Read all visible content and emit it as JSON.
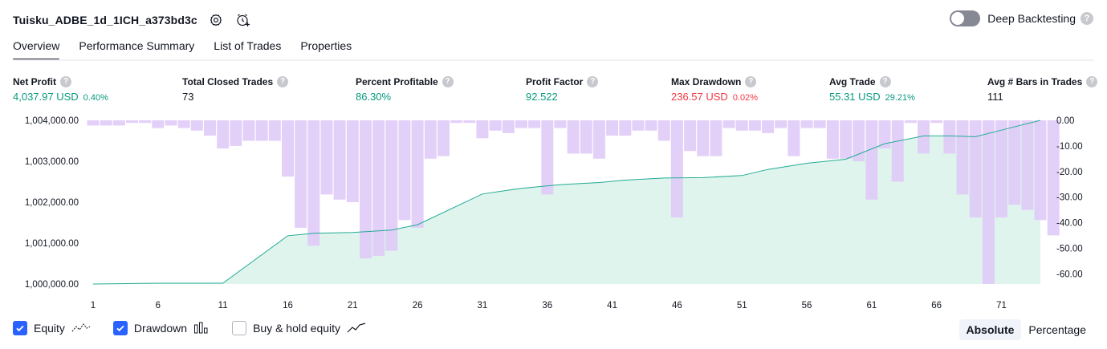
{
  "header": {
    "title": "Tuisku_ADBE_1d_1ICH_a373bd3c",
    "deep_backtesting_label": "Deep Backtesting",
    "help_glyph": "?"
  },
  "tabs": [
    {
      "label": "Overview",
      "active": true
    },
    {
      "label": "Performance Summary",
      "active": false
    },
    {
      "label": "List of Trades",
      "active": false
    },
    {
      "label": "Properties",
      "active": false
    }
  ],
  "metrics": [
    {
      "label": "Net Profit",
      "value": "4,037.97 USD",
      "sub": "0.40%",
      "color": "green"
    },
    {
      "label": "Total Closed Trades",
      "value": "73",
      "sub": "",
      "color": "dark"
    },
    {
      "label": "Percent Profitable",
      "value": "86.30%",
      "sub": "",
      "color": "green"
    },
    {
      "label": "Profit Factor",
      "value": "92.522",
      "sub": "",
      "color": "green"
    },
    {
      "label": "Max Drawdown",
      "value": "236.57 USD",
      "sub": "0.02%",
      "color": "red"
    },
    {
      "label": "Avg Trade",
      "value": "55.31 USD",
      "sub": "29.21%",
      "color": "green"
    },
    {
      "label": "Avg # Bars in Trades",
      "value": "111",
      "sub": "",
      "color": "dark"
    }
  ],
  "legend": {
    "equity_label": "Equity",
    "drawdown_label": "Drawdown",
    "buyhold_label": "Buy & hold equity",
    "equity_checked": true,
    "drawdown_checked": true,
    "buyhold_checked": false
  },
  "segmented": {
    "absolute_label": "Absolute",
    "percentage_label": "Percentage",
    "active": "absolute"
  },
  "colors": {
    "equity_line": "#22ab94",
    "equity_fill": "#e0f4ee",
    "drawdown_bar": "#dec8f8",
    "accent": "#2962ff",
    "green": "#089981",
    "red": "#f23645"
  },
  "chart_data": {
    "type": "area",
    "x_ticks": [
      "1",
      "6",
      "11",
      "16",
      "21",
      "26",
      "31",
      "36",
      "41",
      "46",
      "51",
      "56",
      "61",
      "66",
      "71"
    ],
    "x_range": [
      1,
      74
    ],
    "left_axis": {
      "ticks": [
        "1,004,000.00",
        "1,003,000.00",
        "1,002,000.00",
        "1,001,000.00",
        "1,000,000.00"
      ],
      "range": [
        1000000,
        1004000
      ]
    },
    "right_axis": {
      "ticks": [
        "0.00",
        "-10.00",
        "-20.00",
        "-30.00",
        "-40.00",
        "-50.00",
        "-60.00"
      ],
      "range": [
        -64,
        0
      ]
    },
    "series": [
      {
        "kind": "equity",
        "axis": "left",
        "points": [
          [
            1,
            1000000
          ],
          [
            6,
            1000020
          ],
          [
            11,
            1000020
          ],
          [
            16,
            1001180
          ],
          [
            18,
            1001240
          ],
          [
            21,
            1001260
          ],
          [
            24,
            1001320
          ],
          [
            26,
            1001450
          ],
          [
            31,
            1002200
          ],
          [
            34,
            1002340
          ],
          [
            37,
            1002430
          ],
          [
            40,
            1002480
          ],
          [
            42,
            1002540
          ],
          [
            45,
            1002590
          ],
          [
            48,
            1002600
          ],
          [
            51,
            1002650
          ],
          [
            53,
            1002800
          ],
          [
            56,
            1002950
          ],
          [
            59,
            1003050
          ],
          [
            62,
            1003430
          ],
          [
            65,
            1003620
          ],
          [
            67,
            1003620
          ],
          [
            69,
            1003600
          ],
          [
            71,
            1003760
          ],
          [
            74,
            1004000
          ]
        ]
      },
      {
        "kind": "drawdown",
        "axis": "right",
        "values": [
          -2,
          -2,
          -2,
          -1,
          -1,
          -3,
          -2,
          -3,
          -4,
          -6,
          -11,
          -10,
          -8,
          -8,
          -8,
          -22,
          -42,
          -49,
          -29,
          -31,
          -32,
          -54,
          -53,
          -51,
          -39,
          -42,
          -15,
          -14,
          -1,
          -1,
          -7,
          -4,
          -5,
          -3,
          -3,
          -29,
          -3,
          -13,
          -13,
          -15,
          -6,
          -6,
          -4,
          -4,
          -8,
          -38,
          -12,
          -14,
          -14,
          -3,
          -4,
          -4,
          -5,
          -3,
          -14,
          -3,
          -3,
          -15,
          -15,
          -16,
          -31,
          -11,
          -24,
          -1,
          -13,
          -1,
          -13,
          -29,
          -38,
          -64,
          -38,
          -33,
          -35,
          -39,
          -45
        ]
      }
    ]
  }
}
